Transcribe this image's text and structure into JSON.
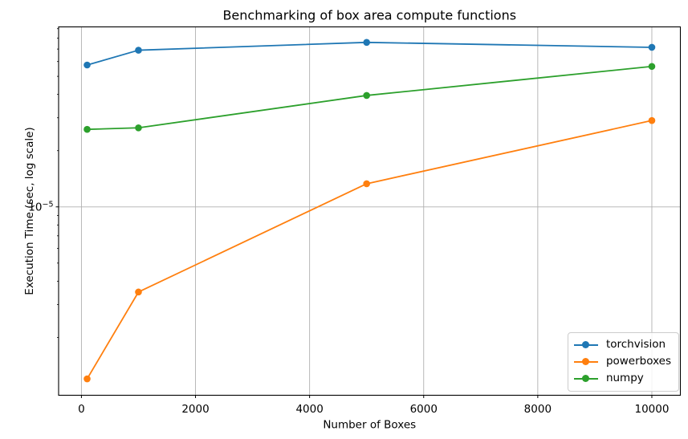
{
  "chart_data": {
    "type": "line",
    "title": "Benchmarking of box area compute functions",
    "xlabel": "Number of Boxes",
    "ylabel": "Execution Time (sec, log scale)",
    "x": [
      100,
      1000,
      5000,
      10000
    ],
    "series": [
      {
        "name": "torchvision",
        "color": "#1f77b4",
        "values": [
          5.75e-05,
          6.9e-05,
          7.6e-05,
          7.15e-05
        ]
      },
      {
        "name": "powerboxes",
        "color": "#ff7f0e",
        "values": [
          1.2e-06,
          3.5e-06,
          1.33e-05,
          2.9e-05
        ]
      },
      {
        "name": "numpy",
        "color": "#2ca02c",
        "values": [
          2.6e-05,
          2.65e-05,
          3.95e-05,
          5.65e-05
        ]
      }
    ],
    "x_ticks": [
      0,
      2000,
      4000,
      6000,
      8000,
      10000
    ],
    "y_scale": "log",
    "y_major_tick": {
      "value": 1e-05,
      "label_base": "10",
      "label_exp": "−5"
    },
    "y_minor_tick_decades": [
      1e-06,
      1e-05
    ],
    "xlim": [
      -400,
      10500
    ],
    "ylim": [
      9.8e-07,
      9.2e-05
    ],
    "grid": true,
    "grid_color": "#b0b0b0",
    "axis_color": "#000000",
    "background": "#ffffff",
    "marker": "circle",
    "legend_position": "lower right"
  }
}
